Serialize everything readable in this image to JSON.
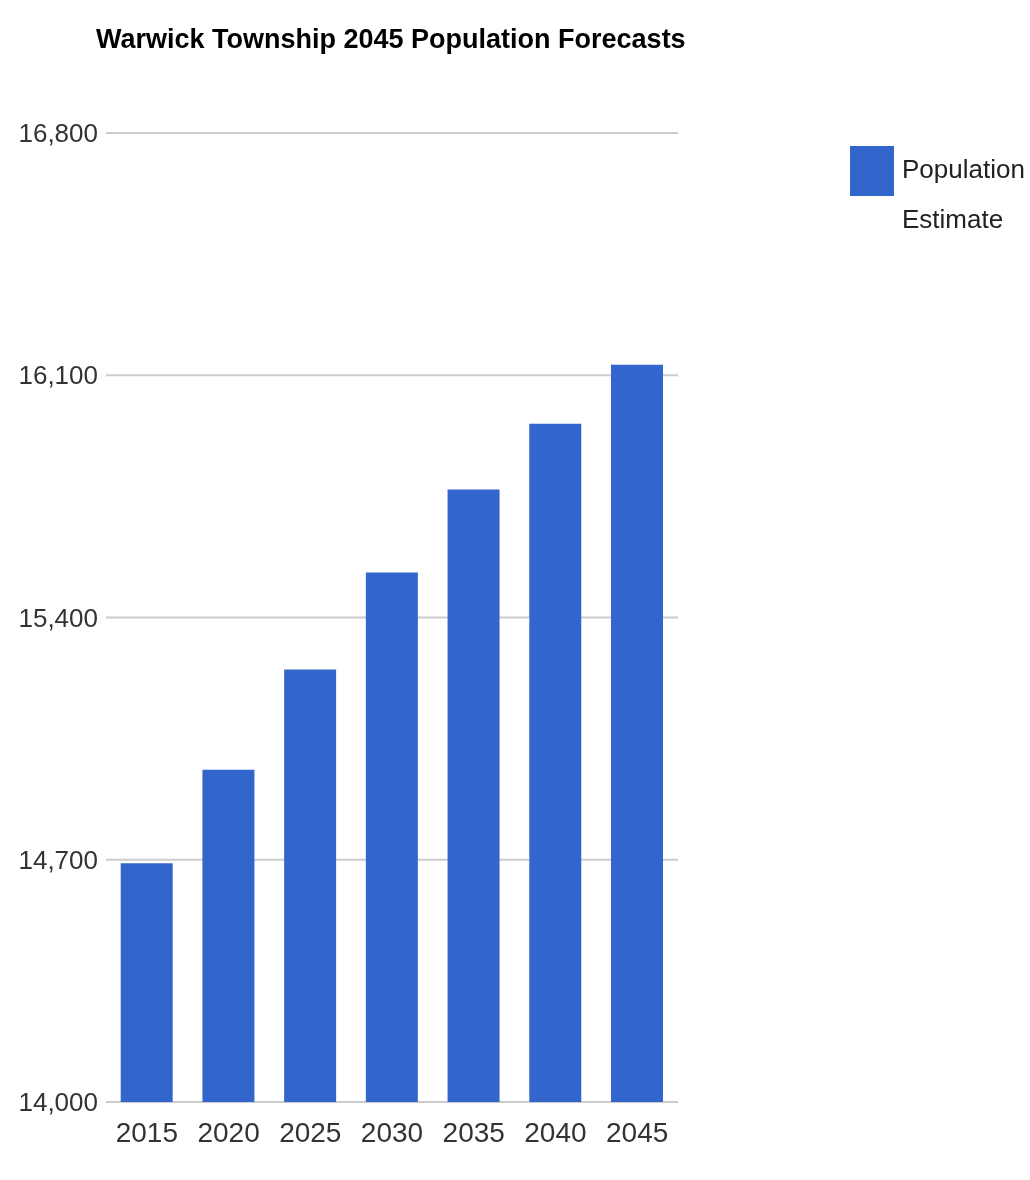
{
  "chart_data": {
    "type": "bar",
    "title": "Warwick Township 2045 Population Forecasts",
    "categories": [
      "2015",
      "2020",
      "2025",
      "2030",
      "2035",
      "2040",
      "2045"
    ],
    "series": [
      {
        "name": "Population Estimate",
        "color": "#3366cc",
        "values": [
          14690,
          14960,
          15250,
          15530,
          15770,
          15960,
          16130
        ]
      }
    ],
    "ylim": [
      14000,
      16800
    ],
    "yticks": [
      {
        "value": 14000,
        "label": "14,000"
      },
      {
        "value": 14700,
        "label": "14,700"
      },
      {
        "value": 15400,
        "label": "15,400"
      },
      {
        "value": 16100,
        "label": "16,100"
      },
      {
        "value": 16800,
        "label": "16,800"
      }
    ],
    "grid": "y",
    "legend": "top right"
  }
}
